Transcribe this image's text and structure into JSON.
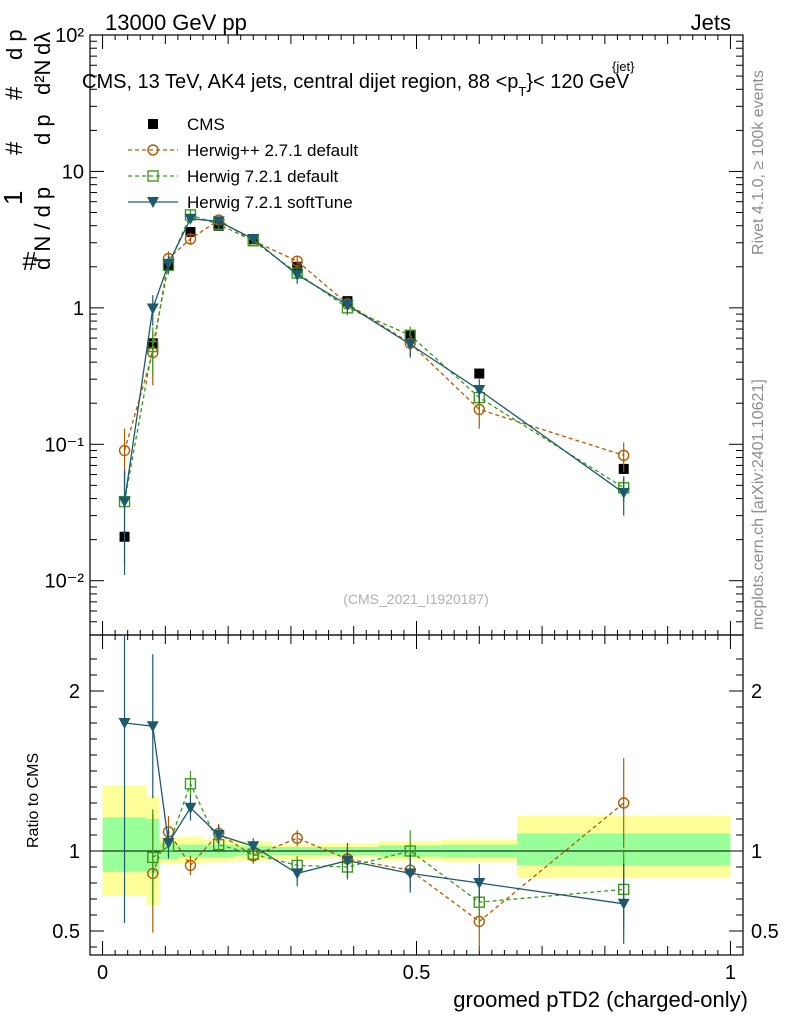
{
  "header": {
    "left": "13000 GeV pp",
    "right": "Jets"
  },
  "plot_title": "CMS, 13 TeV, AK4 jets, central dijet region, 88 <p",
  "plot_title_sup": "{jet}",
  "plot_title_sub": "T",
  "plot_title_end": "}< 120 GeV",
  "y_axis_label": "1/N dN/dpT d²N/dpT dλ",
  "side_text_1": "Rivet 4.1.0, ≥ 100k events",
  "side_text_2": "mcplots.cern.ch [arXiv:2401.10621]",
  "analysis_id": "(CMS_2021_I1920187)",
  "colors": {
    "cms": "#000000",
    "herwigpp": "#b35a00",
    "herwig721": "#3b9a1e",
    "softtune": "#1e5a6e",
    "band_outer": "#ffff99",
    "band_inner": "#99ff99"
  },
  "chart_data": [
    {
      "type": "scatter",
      "title": "CMS, 13 TeV, AK4 jets, central dijet region, 88 < pT(jet) < 120 GeV",
      "xlabel": "groomed pTD2 (charged-only)",
      "ylabel": "1/N dN/dpT d²N/dpT dλ",
      "yscale": "log",
      "xlim": [
        -0.02,
        1.02
      ],
      "ylim": [
        0.004,
        100
      ],
      "y_ticks": [
        "10⁻²",
        "10⁻¹",
        "1",
        "10",
        "10²"
      ],
      "legend_position": "top-left",
      "series": [
        {
          "name": "CMS",
          "style": "black-square",
          "x": [
            0.035,
            0.08,
            0.105,
            0.14,
            0.185,
            0.24,
            0.31,
            0.39,
            0.49,
            0.6,
            0.83
          ],
          "y": [
            0.021,
            0.55,
            2.05,
            3.6,
            4.0,
            3.2,
            2.0,
            1.12,
            0.63,
            0.33,
            0.066
          ]
        },
        {
          "name": "Herwig++ 2.7.1 default",
          "style": "orange-circle-dashed",
          "x": [
            0.035,
            0.08,
            0.105,
            0.14,
            0.185,
            0.24,
            0.31,
            0.39,
            0.49,
            0.6,
            0.83
          ],
          "y": [
            0.09,
            0.47,
            2.3,
            3.2,
            4.4,
            3.1,
            2.2,
            1.07,
            0.55,
            0.18,
            0.083
          ],
          "err": [
            0.04,
            0.2,
            0.3,
            0.3,
            0.3,
            0.2,
            0.2,
            0.12,
            0.12,
            0.05,
            0.02
          ]
        },
        {
          "name": "Herwig 7.2.1 default",
          "style": "green-square-dashed",
          "x": [
            0.035,
            0.08,
            0.105,
            0.14,
            0.185,
            0.24,
            0.31,
            0.39,
            0.49,
            0.6,
            0.83
          ],
          "y": [
            0.038,
            0.52,
            2.05,
            4.8,
            4.1,
            3.1,
            1.8,
            1.0,
            0.63,
            0.22,
            0.048
          ],
          "err": [
            0.025,
            0.2,
            0.3,
            0.5,
            0.3,
            0.2,
            0.2,
            0.12,
            0.1,
            0.05,
            0.01
          ]
        },
        {
          "name": "Herwig 7.2.1 softTune",
          "style": "teal-triangle-solid",
          "x": [
            0.035,
            0.08,
            0.105,
            0.14,
            0.185,
            0.24,
            0.31,
            0.39,
            0.49,
            0.6,
            0.83
          ],
          "y": [
            0.038,
            0.99,
            2.1,
            4.5,
            4.3,
            3.2,
            1.75,
            1.05,
            0.54,
            0.25,
            0.044
          ],
          "err": [
            0.027,
            0.25,
            0.3,
            0.4,
            0.3,
            0.2,
            0.25,
            0.14,
            0.1,
            0.05,
            0.014
          ]
        }
      ]
    },
    {
      "type": "scatter",
      "title": "Ratio to CMS",
      "xlabel": "groomed pTD2 (charged-only)",
      "ylabel": "Ratio to CMS",
      "xlim": [
        -0.02,
        1.02
      ],
      "ylim": [
        0.35,
        2.35
      ],
      "x_ticks": [
        "0",
        "0.5",
        "1"
      ],
      "y_ticks": [
        "0.5",
        "1",
        "2"
      ],
      "bands": {
        "edges": [
          0.0,
          0.07,
          0.09,
          0.12,
          0.16,
          0.21,
          0.27,
          0.35,
          0.44,
          0.54,
          0.66,
          1.0
        ],
        "outer_lo": [
          0.72,
          0.66,
          0.92,
          0.92,
          0.93,
          0.94,
          0.95,
          0.955,
          0.94,
          0.93,
          0.83
        ],
        "outer_hi": [
          1.41,
          1.34,
          1.08,
          1.09,
          1.07,
          1.06,
          1.04,
          1.045,
          1.06,
          1.07,
          1.22
        ],
        "inner_lo": [
          0.87,
          0.86,
          0.95,
          0.96,
          0.96,
          0.97,
          0.975,
          0.975,
          0.965,
          0.96,
          0.91
        ],
        "inner_hi": [
          1.21,
          1.2,
          1.05,
          1.04,
          1.04,
          1.03,
          1.025,
          1.025,
          1.035,
          1.04,
          1.11
        ]
      },
      "series": [
        {
          "name": "Herwig++ 2.7.1 default",
          "x": [
            0.08,
            0.105,
            0.14,
            0.185,
            0.24,
            0.31,
            0.39,
            0.49,
            0.6,
            0.83
          ],
          "y": [
            0.86,
            1.12,
            0.91,
            1.11,
            0.97,
            1.08,
            0.95,
            0.88,
            0.56,
            1.3
          ],
          "err": [
            0.37,
            0.1,
            0.06,
            0.06,
            0.05,
            0.05,
            0.07,
            0.11,
            0.18,
            0.28
          ]
        },
        {
          "name": "Herwig 7.2.1 default",
          "x": [
            0.08,
            0.105,
            0.14,
            0.185,
            0.24,
            0.31,
            0.39,
            0.49,
            0.6,
            0.83
          ],
          "y": [
            0.96,
            1.03,
            1.42,
            1.04,
            0.98,
            0.91,
            0.9,
            1.0,
            0.68,
            0.76
          ],
          "err": [
            0.3,
            0.08,
            0.08,
            0.05,
            0.05,
            0.06,
            0.08,
            0.13,
            0.13,
            0.25
          ]
        },
        {
          "name": "Herwig 7.2.1 softTune",
          "x": [
            0.035,
            0.08,
            0.105,
            0.14,
            0.185,
            0.24,
            0.31,
            0.39,
            0.49,
            0.6,
            0.83
          ],
          "y": [
            1.8,
            1.78,
            1.05,
            1.27,
            1.1,
            1.03,
            0.86,
            0.94,
            0.86,
            0.8,
            0.67
          ],
          "err": [
            1.25,
            0.45,
            0.09,
            0.08,
            0.06,
            0.05,
            0.08,
            0.11,
            0.12,
            0.12,
            0.25
          ]
        }
      ]
    }
  ]
}
